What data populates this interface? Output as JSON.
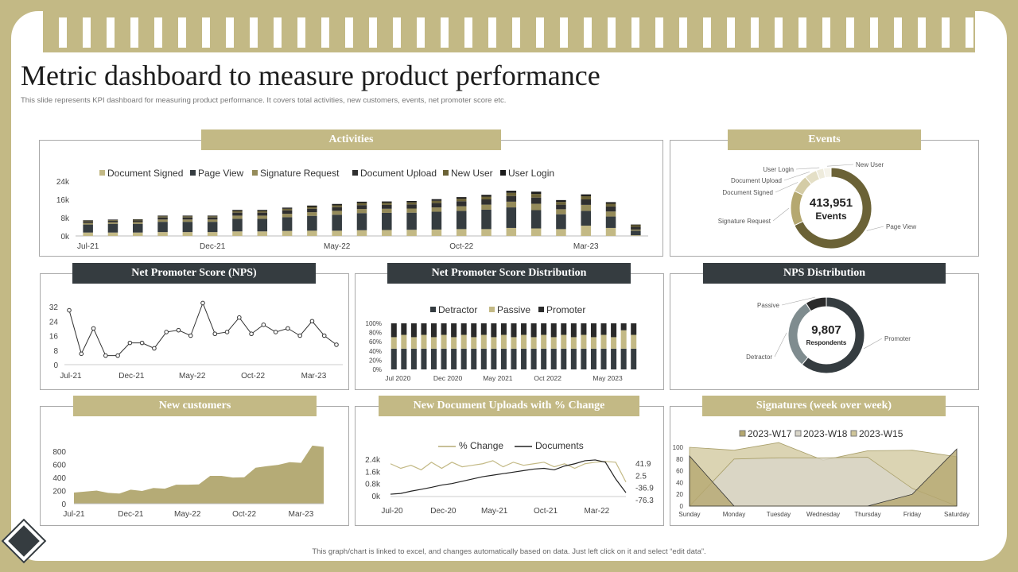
{
  "header": {
    "title": "Metric dashboard to measure product performance",
    "subtitle": "This slide represents KPI dashboard for measuring product performance. It covers total activities, new customers, events, net promoter score etc.",
    "footer": "This graph/chart is linked to excel, and changes automatically based on data. Just left click on it and select “edit data”."
  },
  "colors": {
    "gold": "#c3b985",
    "dark": "#353c40",
    "olive": "#6b6236",
    "grey": "#7f8c8f"
  },
  "panels": {
    "activities": "Activities",
    "events": "Events",
    "nps": "Net Promoter Score (NPS)",
    "npsdist": "Net Promoter Score Distribution",
    "npsdonut": "NPS Distribution",
    "newcust": "New customers",
    "uploads": "New Document Uploads with % Change",
    "signatures": "Signatures (week over week)"
  },
  "chart_data": [
    {
      "id": "activities",
      "type": "bar",
      "stacked": true,
      "categories": [
        "Jul-21",
        "Aug-21",
        "Sep-21",
        "Oct-21",
        "Nov-21",
        "Dec-21",
        "Jan-22",
        "Feb-22",
        "Mar-22",
        "Apr-22",
        "May-22",
        "Jun-22",
        "Jul-22",
        "Aug-22",
        "Sep-22",
        "Oct-22",
        "Nov-22",
        "Dec-22",
        "Jan-23",
        "Feb-23",
        "Mar-23",
        "Apr-23",
        "May-23"
      ],
      "tick_labels": [
        "Jul-21",
        "Dec-21",
        "May-22",
        "Oct-22",
        "Mar-23"
      ],
      "yticks": [
        "0k",
        "8k",
        "16k",
        "24k"
      ],
      "ylim": [
        0,
        24000
      ],
      "series": [
        {
          "name": "Document Signed",
          "color": "#c3b985",
          "values": [
            1500,
            1500,
            1500,
            1700,
            1700,
            1700,
            2000,
            2000,
            2200,
            2300,
            2300,
            2500,
            2600,
            2700,
            2800,
            3000,
            3000,
            3500,
            3300,
            3000,
            4500,
            3500,
            300
          ]
        },
        {
          "name": "Page View",
          "color": "#353c40",
          "values": [
            3500,
            3800,
            3800,
            4500,
            4500,
            4500,
            5500,
            5500,
            6000,
            6500,
            7000,
            7500,
            7500,
            7500,
            7800,
            8000,
            8500,
            9000,
            8000,
            6500,
            6500,
            5000,
            2000
          ]
        },
        {
          "name": "Signature Request",
          "color": "#958b5a",
          "values": [
            700,
            700,
            800,
            1000,
            1000,
            1000,
            1400,
            1400,
            1500,
            1600,
            1700,
            1800,
            1800,
            1800,
            1900,
            2000,
            2200,
            2500,
            2800,
            2200,
            2600,
            2200,
            500
          ]
        },
        {
          "name": "Document Upload",
          "color": "#2f2f2f",
          "values": [
            700,
            700,
            700,
            900,
            900,
            900,
            1300,
            1300,
            1500,
            1500,
            1600,
            1700,
            1700,
            1800,
            1900,
            2200,
            2300,
            2500,
            2700,
            2000,
            2400,
            2200,
            1200
          ]
        },
        {
          "name": "New User",
          "color": "#6b6236",
          "values": [
            300,
            300,
            300,
            500,
            500,
            500,
            700,
            700,
            700,
            800,
            800,
            900,
            900,
            900,
            1000,
            1100,
            1200,
            1400,
            1600,
            1200,
            1400,
            1200,
            700
          ]
        },
        {
          "name": "User Login",
          "color": "#1c1c1c",
          "values": [
            200,
            200,
            200,
            300,
            300,
            300,
            500,
            500,
            500,
            600,
            600,
            600,
            600,
            600,
            700,
            700,
            800,
            900,
            1000,
            800,
            800,
            700,
            300
          ]
        }
      ]
    },
    {
      "id": "events",
      "type": "pie",
      "donut": true,
      "center_value": "413,951",
      "center_label": "Events",
      "slices": [
        {
          "label": "Page View",
          "value": 68,
          "color": "#6b6236"
        },
        {
          "label": "Signature Request",
          "value": 14,
          "color": "#b5a870"
        },
        {
          "label": "Document Signed",
          "value": 7,
          "color": "#d4cca6"
        },
        {
          "label": "Document Upload",
          "value": 5,
          "color": "#e4dfc6"
        },
        {
          "label": "User Login",
          "value": 3,
          "color": "#eeebdc"
        },
        {
          "label": "New User",
          "value": 3,
          "color": "#f5f3ea"
        }
      ]
    },
    {
      "id": "nps",
      "type": "line",
      "values": [
        30,
        6,
        20,
        5,
        5,
        12,
        12,
        9,
        18,
        19,
        16,
        34,
        17,
        18,
        26,
        17,
        22,
        18,
        20,
        16,
        24,
        16,
        11
      ],
      "yticks": [
        "0",
        "8",
        "16",
        "24",
        "32"
      ],
      "ylim": [
        0,
        36
      ],
      "tick_labels": [
        "Jul-21",
        "Dec-21",
        "May-22",
        "Oct-22",
        "Mar-23"
      ]
    },
    {
      "id": "npsdist",
      "type": "bar",
      "stacked": true,
      "percent": true,
      "legend": [
        "Detractor",
        "Passive",
        "Promoter"
      ],
      "colors": [
        "#353c40",
        "#c3b985",
        "#2a2a2a"
      ],
      "yticks": [
        "0%",
        "20%",
        "40%",
        "60%",
        "80%",
        "100%"
      ],
      "tick_labels": [
        "Jul 2020",
        "Dec 2020",
        "May 2021",
        "Oct 2022",
        "May 2023"
      ],
      "detractor": [
        45,
        45,
        45,
        45,
        45,
        45,
        45,
        45,
        45,
        45,
        45,
        45,
        45,
        45,
        45,
        45,
        45,
        45,
        45,
        45,
        45,
        45,
        45,
        45,
        45
      ],
      "passive": [
        25,
        30,
        25,
        30,
        25,
        30,
        25,
        30,
        25,
        30,
        25,
        30,
        25,
        30,
        25,
        30,
        25,
        30,
        25,
        30,
        25,
        30,
        25,
        40,
        30
      ],
      "promoter": [
        30,
        25,
        30,
        25,
        30,
        25,
        30,
        25,
        30,
        25,
        30,
        25,
        30,
        25,
        30,
        25,
        30,
        25,
        30,
        25,
        30,
        25,
        30,
        15,
        25
      ]
    },
    {
      "id": "npsdonut",
      "type": "pie",
      "donut": true,
      "center_value": "9,807",
      "center_label": "Respondents",
      "slices": [
        {
          "label": "Promoter",
          "value": 61,
          "color": "#353c40"
        },
        {
          "label": "Detractor",
          "value": 30,
          "color": "#7f8c8f"
        },
        {
          "label": "Passive",
          "value": 9,
          "color": "#2a2a2a"
        }
      ]
    },
    {
      "id": "newcust",
      "type": "area",
      "values": [
        170,
        185,
        200,
        165,
        155,
        215,
        195,
        240,
        230,
        290,
        290,
        295,
        425,
        425,
        400,
        405,
        550,
        575,
        595,
        635,
        625,
        890,
        870
      ],
      "yticks": [
        "0",
        "200",
        "400",
        "600",
        "800"
      ],
      "ylim": [
        0,
        900
      ],
      "tick_labels": [
        "Jul-21",
        "Dec-21",
        "May-22",
        "Oct-22",
        "Mar-23"
      ]
    },
    {
      "id": "uploads",
      "type": "line",
      "legend": [
        "% Change",
        "Documents"
      ],
      "documents": [
        0.1,
        0.15,
        0.3,
        0.42,
        0.55,
        0.7,
        0.8,
        0.95,
        1.1,
        1.25,
        1.35,
        1.45,
        1.55,
        1.65,
        1.75,
        1.8,
        1.7,
        1.95,
        2.1,
        2.3,
        2.35,
        2.2,
        1.1,
        0.2
      ],
      "pct_change": [
        2.1,
        1.8,
        2.0,
        1.7,
        2.2,
        1.8,
        2.2,
        1.9,
        2.0,
        2.1,
        2.3,
        1.9,
        2.2,
        2.0,
        2.1,
        2.2,
        1.9,
        2.1,
        1.8,
        2.1,
        2.2,
        2.25,
        2.2,
        0.9
      ],
      "yticks_left": [
        "0k",
        "0.8k",
        "1.6k",
        "2.4k"
      ],
      "yticks_right": [
        "-76.3",
        "-36.9",
        "2.5",
        "41.9"
      ],
      "tick_labels": [
        "Jul-20",
        "Dec-20",
        "May-21",
        "Oct-21",
        "Mar-22"
      ]
    },
    {
      "id": "signatures",
      "type": "area",
      "legend": [
        "2023-W17",
        "2023-W18",
        "2023-W15"
      ],
      "categories": [
        "Sunday",
        "Monday",
        "Tuesday",
        "Wednesday",
        "Thursday",
        "Friday",
        "Saturday"
      ],
      "yticks": [
        "0",
        "20",
        "40",
        "60",
        "80",
        "100"
      ],
      "ylim": [
        0,
        100
      ],
      "series": [
        {
          "name": "2023-W17",
          "color": "#b5a870",
          "values": [
            85,
            0,
            0,
            0,
            0,
            20,
            97
          ]
        },
        {
          "name": "2023-W18",
          "color": "#d9d6c9",
          "values": [
            0,
            80,
            82,
            82,
            83,
            30,
            0
          ]
        },
        {
          "name": "2023-W15",
          "color": "#cfc599",
          "values": [
            100,
            95,
            108,
            78,
            94,
            95,
            84
          ]
        }
      ]
    }
  ]
}
